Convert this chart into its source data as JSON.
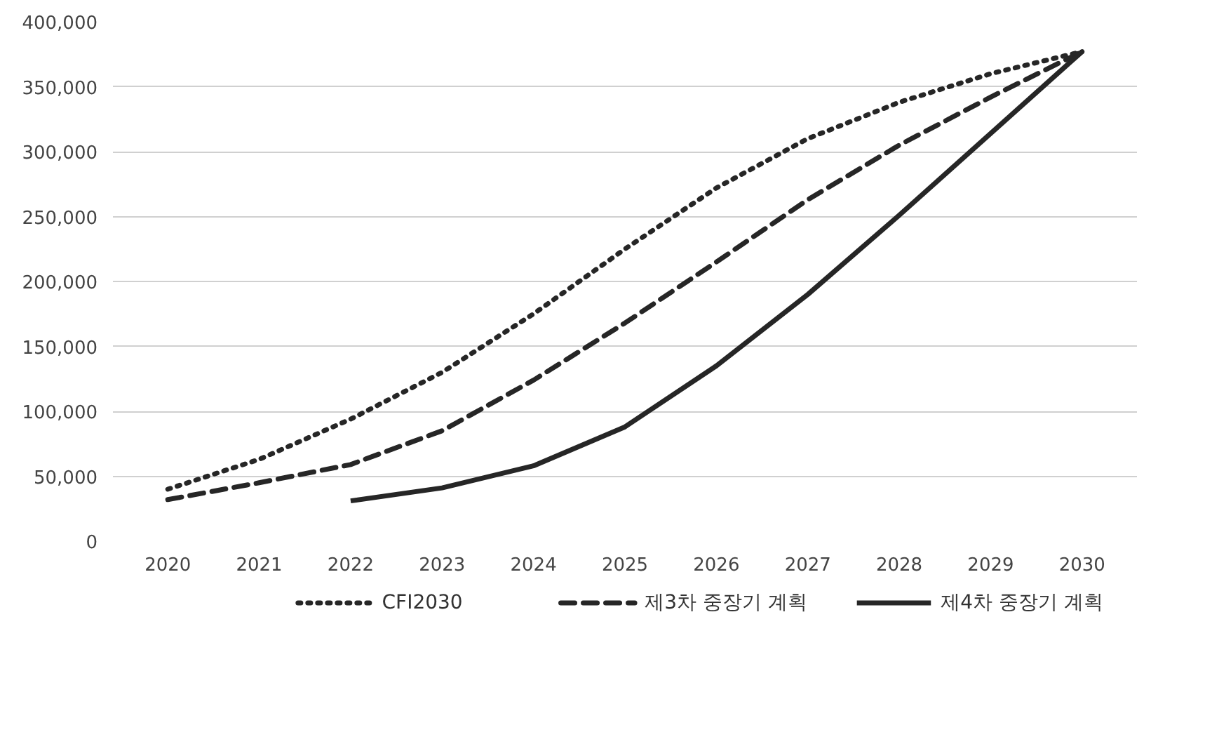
{
  "chart_data": {
    "type": "line",
    "categories": [
      "2020",
      "2021",
      "2022",
      "2023",
      "2024",
      "2025",
      "2026",
      "2027",
      "2028",
      "2029",
      "2030"
    ],
    "series": [
      {
        "name": "CFI2030",
        "color": "#262626",
        "line_style": "dotted",
        "values": [
          40000,
          63000,
          94000,
          130000,
          175000,
          225000,
          272000,
          310000,
          338000,
          360000,
          377000
        ]
      },
      {
        "name": "제3차 중장기 계획",
        "color": "#262626",
        "line_style": "dashed",
        "values": [
          32000,
          45000,
          59000,
          85000,
          124000,
          168000,
          215000,
          263000,
          305000,
          342000,
          377000
        ]
      },
      {
        "name": "제4차 중장기 계획",
        "color": "#262626",
        "line_style": "solid",
        "values": [
          null,
          null,
          31000,
          41000,
          58000,
          88000,
          135000,
          190000,
          251000,
          314000,
          377000
        ]
      }
    ],
    "ylim": [
      0,
      400000
    ],
    "yticks": [
      {
        "value": 0,
        "label": "0"
      },
      {
        "value": 50000,
        "label": "50,000"
      },
      {
        "value": 100000,
        "label": "100,000"
      },
      {
        "value": 150000,
        "label": "150,000"
      },
      {
        "value": 200000,
        "label": "200,000"
      },
      {
        "value": 250000,
        "label": "250,000"
      },
      {
        "value": 300000,
        "label": "300,000"
      },
      {
        "value": 350000,
        "label": "350,000"
      },
      {
        "value": 400000,
        "label": "400,000"
      }
    ],
    "grid": "y",
    "legend": "bottom",
    "marker": "none"
  }
}
